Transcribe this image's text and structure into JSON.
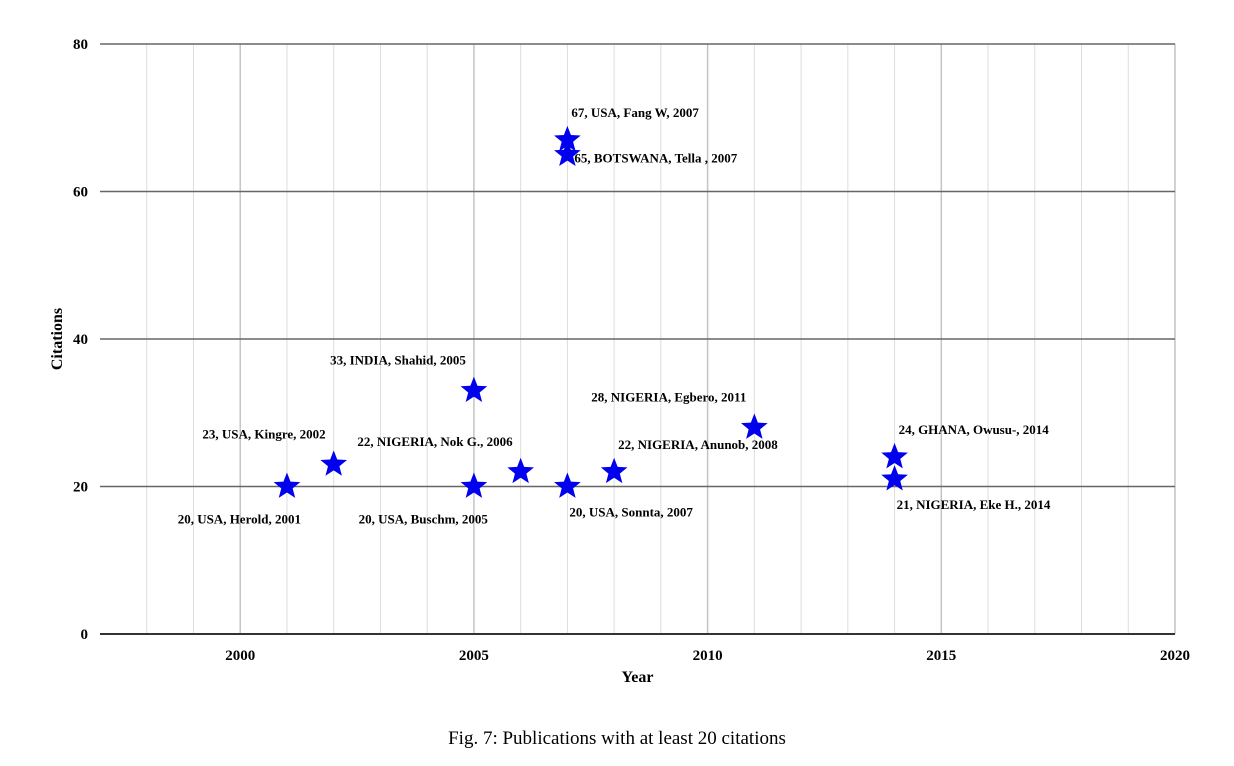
{
  "caption": "Fig. 7: Publications with at least 20 citations",
  "chart_data": {
    "type": "scatter",
    "xlabel": "Year",
    "ylabel": "Citations",
    "xlim": [
      1997,
      2020
    ],
    "ylim": [
      0,
      80
    ],
    "x_ticks": [
      2000,
      2005,
      2010,
      2015,
      2020
    ],
    "y_ticks": [
      0,
      20,
      40,
      60,
      80
    ],
    "grid": true,
    "marker": "star",
    "marker_color": "#0000ee",
    "points": [
      {
        "x": 2001,
        "y": 20,
        "label": "20, USA, Herold, 2001",
        "label_pos": "below-left"
      },
      {
        "x": 2002,
        "y": 23,
        "label": "23, USA, Kingre, 2002",
        "label_pos": "above-left"
      },
      {
        "x": 2005,
        "y": 33,
        "label": "33, INDIA, Shahid, 2005",
        "label_pos": "above-left"
      },
      {
        "x": 2005,
        "y": 20,
        "label": "20, USA, Buschm, 2005",
        "label_pos": "below-left"
      },
      {
        "x": 2006,
        "y": 22,
        "label": "22, NIGERIA, Nok G., 2006",
        "label_pos": "above-left"
      },
      {
        "x": 2007,
        "y": 67,
        "label": "67, USA, Fang W, 2007",
        "label_pos": "above-right"
      },
      {
        "x": 2007,
        "y": 65,
        "label": "65, BOTSWANA, Tella , 2007",
        "label_pos": "right"
      },
      {
        "x": 2007,
        "y": 20,
        "label": "20, USA, Sonnta, 2007",
        "label_pos": "below-right"
      },
      {
        "x": 2008,
        "y": 22,
        "label": "22, NIGERIA, Anunob, 2008",
        "label_pos": "above-right"
      },
      {
        "x": 2011,
        "y": 28,
        "label": "28, NIGERIA, Egbero, 2011",
        "label_pos": "above-left"
      },
      {
        "x": 2014,
        "y": 24,
        "label": "24, GHANA, Owusu-, 2014",
        "label_pos": "above-right"
      },
      {
        "x": 2014,
        "y": 21,
        "label": "21, NIGERIA, Eke H., 2014",
        "label_pos": "below-right"
      }
    ]
  }
}
